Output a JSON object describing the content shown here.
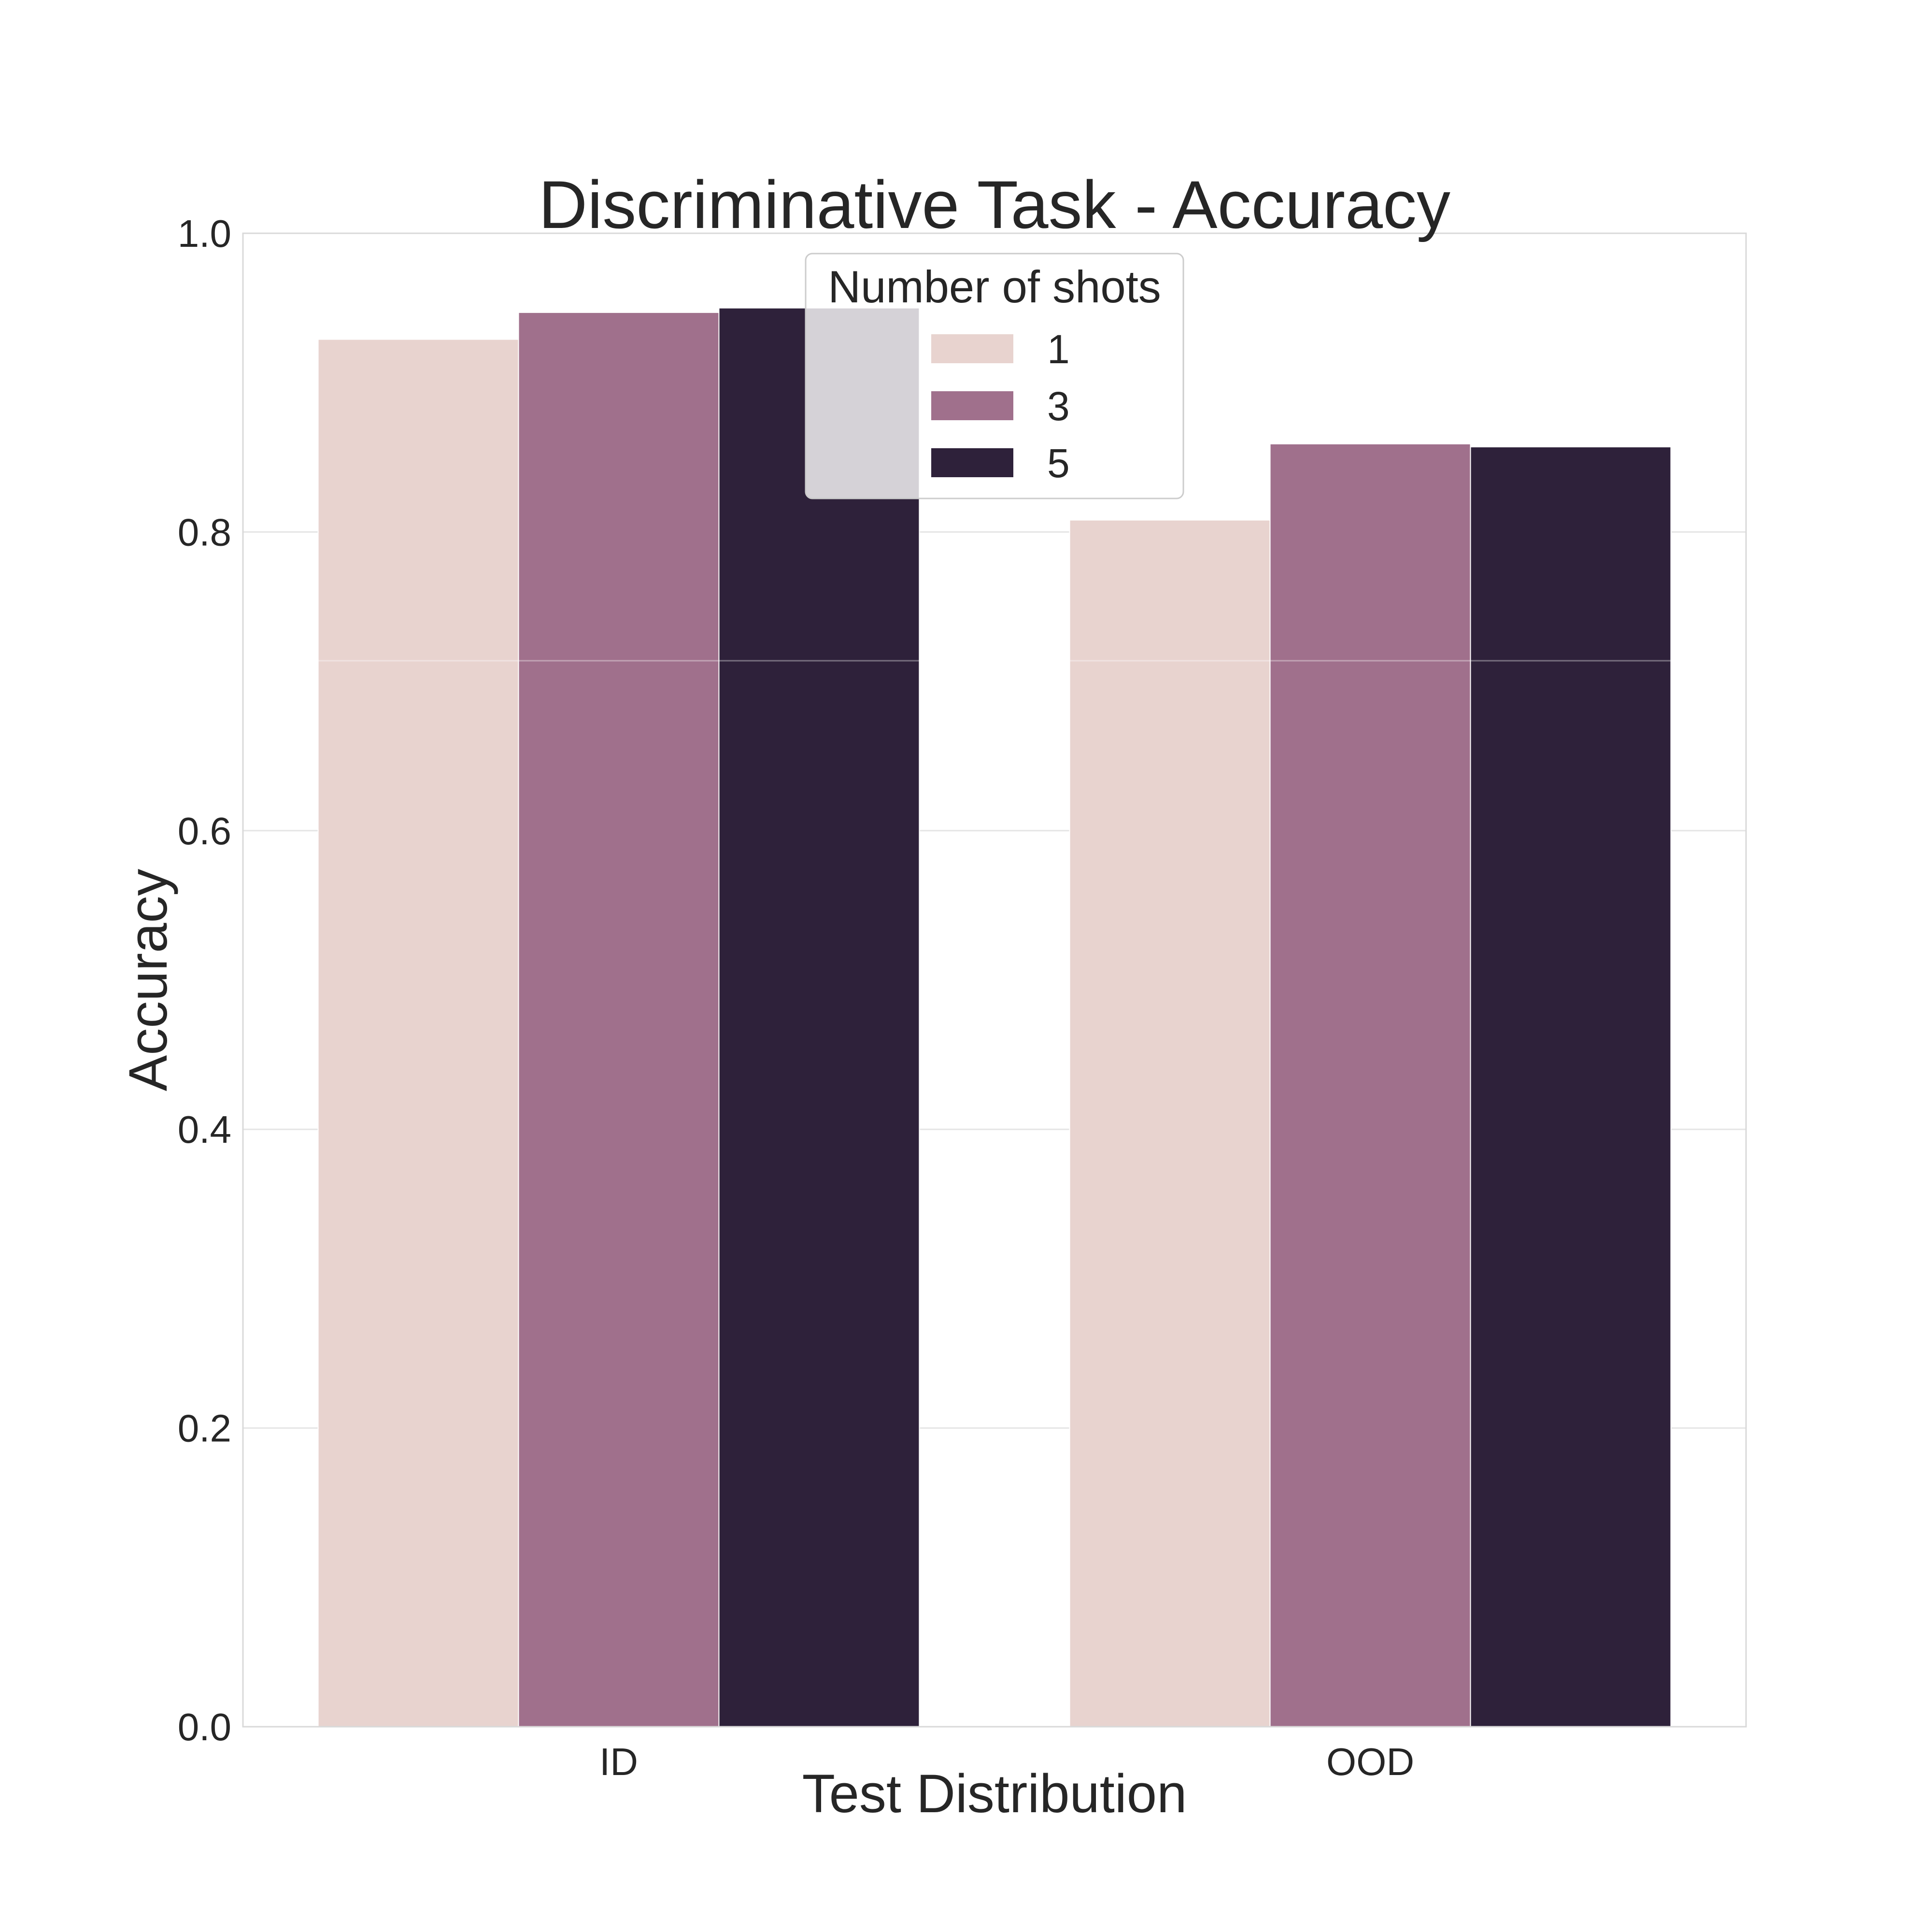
{
  "chart_data": {
    "type": "bar",
    "title": "Discriminative Task - Accuracy",
    "xlabel": "Test Distribution",
    "ylabel": "Accuracy",
    "categories": [
      "ID",
      "OOD"
    ],
    "series": [
      {
        "name": "1",
        "values": [
          0.929,
          0.808
        ],
        "color": "#e8d3cf"
      },
      {
        "name": "3",
        "values": [
          0.947,
          0.859
        ],
        "color": "#a0708c"
      },
      {
        "name": "5",
        "values": [
          0.95,
          0.857
        ],
        "color": "#2e213a"
      }
    ],
    "ylim": [
      0,
      1.0
    ],
    "yticks": [
      "0.0",
      "0.2",
      "0.4",
      "0.6",
      "0.8",
      "1.0"
    ],
    "grid": true,
    "legend": {
      "title": "Number of shots",
      "placement": "upper-center"
    }
  }
}
